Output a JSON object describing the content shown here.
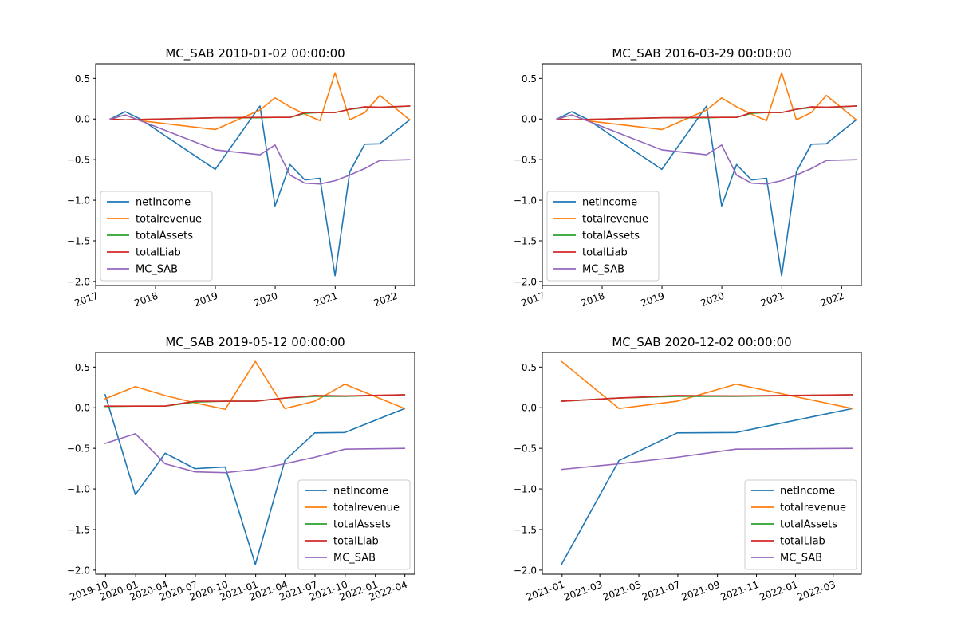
{
  "colors": {
    "netIncome": "#1f77b4",
    "totalrevenue": "#ff7f0e",
    "totalAssets": "#2ca02c",
    "totalLiab": "#d62728",
    "MC_SAB": "#9467bd"
  },
  "chart_data": [
    {
      "type": "line",
      "title": "MC_SAB 2010-01-02 00:00:00",
      "xlabel": "",
      "ylabel": "",
      "x_type": "date",
      "xlim": [
        "2017-01-01",
        "2022-05-01"
      ],
      "ylim": [
        -2.05,
        0.68
      ],
      "xticks": [
        "2017-01-01",
        "2018-01-01",
        "2019-01-01",
        "2020-01-01",
        "2021-01-01",
        "2022-01-01"
      ],
      "xtick_labels": [
        "2017",
        "2018",
        "2019",
        "2020",
        "2021",
        "2022"
      ],
      "yticks": [
        0.5,
        0.0,
        -0.5,
        -1.0,
        -1.5,
        -2.0
      ],
      "ytick_labels": [
        "0.5",
        "0.0",
        "−0.5",
        "−1.0",
        "−1.5",
        "−2.0"
      ],
      "legend_position": "lower-left",
      "grid": false,
      "series": [
        {
          "name": "netIncome",
          "x": [
            "2017-03-31",
            "2017-06-30",
            "2017-09-30",
            "2018-12-31",
            "2019-09-30",
            "2019-12-31",
            "2020-03-31",
            "2020-06-30",
            "2020-09-30",
            "2020-12-31",
            "2021-03-31",
            "2021-06-30",
            "2021-09-30",
            "2022-03-31"
          ],
          "values": [
            0.0,
            0.09,
            0.0,
            -0.62,
            0.16,
            -1.07,
            -0.56,
            -0.75,
            -0.73,
            -1.93,
            -0.65,
            -0.31,
            -0.305,
            -0.01
          ]
        },
        {
          "name": "totalrevenue",
          "x": [
            "2017-03-31",
            "2017-06-30",
            "2017-09-30",
            "2018-12-31",
            "2019-09-30",
            "2019-12-31",
            "2020-03-31",
            "2020-06-30",
            "2020-09-30",
            "2020-12-31",
            "2021-03-31",
            "2021-06-30",
            "2021-09-30",
            "2022-03-31"
          ],
          "values": [
            0.0,
            0.05,
            -0.02,
            -0.13,
            0.11,
            0.26,
            0.15,
            0.06,
            -0.02,
            0.57,
            -0.01,
            0.08,
            0.29,
            -0.01
          ]
        },
        {
          "name": "totalAssets",
          "x": [
            "2017-03-31",
            "2017-06-30",
            "2017-09-30",
            "2018-12-31",
            "2019-09-30",
            "2019-12-31",
            "2020-03-31",
            "2020-06-30",
            "2020-09-30",
            "2020-12-31",
            "2021-03-31",
            "2021-06-30",
            "2021-09-30",
            "2022-03-31"
          ],
          "values": [
            0.0,
            -0.01,
            -0.005,
            0.015,
            0.015,
            0.02,
            0.02,
            0.07,
            0.08,
            0.08,
            0.12,
            0.14,
            0.14,
            0.16
          ]
        },
        {
          "name": "totalLiab",
          "x": [
            "2017-03-31",
            "2017-06-30",
            "2017-09-30",
            "2018-12-31",
            "2019-09-30",
            "2019-12-31",
            "2020-03-31",
            "2020-06-30",
            "2020-09-30",
            "2020-12-31",
            "2021-03-31",
            "2021-06-30",
            "2021-09-30",
            "2022-03-31"
          ],
          "values": [
            0.0,
            -0.01,
            -0.005,
            0.015,
            0.02,
            0.02,
            0.02,
            0.08,
            0.08,
            0.08,
            0.12,
            0.15,
            0.145,
            0.16
          ]
        },
        {
          "name": "MC_SAB",
          "x": [
            "2017-03-31",
            "2017-06-30",
            "2017-09-30",
            "2018-12-31",
            "2019-09-30",
            "2019-12-31",
            "2020-03-31",
            "2020-06-30",
            "2020-09-30",
            "2020-12-31",
            "2021-03-31",
            "2021-06-30",
            "2021-09-30",
            "2022-03-31"
          ],
          "values": [
            0.0,
            0.05,
            -0.02,
            -0.38,
            -0.44,
            -0.32,
            -0.69,
            -0.79,
            -0.8,
            -0.76,
            -0.69,
            -0.61,
            -0.51,
            -0.5
          ]
        }
      ]
    },
    {
      "type": "line",
      "title": "MC_SAB 2016-03-29 00:00:00",
      "xlabel": "",
      "ylabel": "",
      "x_type": "date",
      "xlim": [
        "2017-01-01",
        "2022-05-01"
      ],
      "ylim": [
        -2.05,
        0.68
      ],
      "xticks": [
        "2017-01-01",
        "2018-01-01",
        "2019-01-01",
        "2020-01-01",
        "2021-01-01",
        "2022-01-01"
      ],
      "xtick_labels": [
        "2017",
        "2018",
        "2019",
        "2020",
        "2021",
        "2022"
      ],
      "yticks": [
        0.5,
        0.0,
        -0.5,
        -1.0,
        -1.5,
        -2.0
      ],
      "ytick_labels": [
        "0.5",
        "0.0",
        "−0.5",
        "−1.0",
        "−1.5",
        "−2.0"
      ],
      "legend_position": "lower-left",
      "grid": false,
      "series": [
        {
          "name": "netIncome",
          "x": [
            "2017-03-31",
            "2017-06-30",
            "2017-09-30",
            "2018-12-31",
            "2019-09-30",
            "2019-12-31",
            "2020-03-31",
            "2020-06-30",
            "2020-09-30",
            "2020-12-31",
            "2021-03-31",
            "2021-06-30",
            "2021-09-30",
            "2022-03-31"
          ],
          "values": [
            0.0,
            0.09,
            0.0,
            -0.62,
            0.16,
            -1.07,
            -0.56,
            -0.75,
            -0.73,
            -1.93,
            -0.65,
            -0.31,
            -0.305,
            -0.01
          ]
        },
        {
          "name": "totalrevenue",
          "x": [
            "2017-03-31",
            "2017-06-30",
            "2017-09-30",
            "2018-12-31",
            "2019-09-30",
            "2019-12-31",
            "2020-03-31",
            "2020-06-30",
            "2020-09-30",
            "2020-12-31",
            "2021-03-31",
            "2021-06-30",
            "2021-09-30",
            "2022-03-31"
          ],
          "values": [
            0.0,
            0.05,
            -0.02,
            -0.13,
            0.11,
            0.26,
            0.15,
            0.06,
            -0.02,
            0.57,
            -0.01,
            0.08,
            0.29,
            -0.01
          ]
        },
        {
          "name": "totalAssets",
          "x": [
            "2017-03-31",
            "2017-06-30",
            "2017-09-30",
            "2018-12-31",
            "2019-09-30",
            "2019-12-31",
            "2020-03-31",
            "2020-06-30",
            "2020-09-30",
            "2020-12-31",
            "2021-03-31",
            "2021-06-30",
            "2021-09-30",
            "2022-03-31"
          ],
          "values": [
            0.0,
            -0.01,
            -0.005,
            0.015,
            0.015,
            0.02,
            0.02,
            0.07,
            0.08,
            0.08,
            0.12,
            0.14,
            0.14,
            0.16
          ]
        },
        {
          "name": "totalLiab",
          "x": [
            "2017-03-31",
            "2017-06-30",
            "2017-09-30",
            "2018-12-31",
            "2019-09-30",
            "2019-12-31",
            "2020-03-31",
            "2020-06-30",
            "2020-09-30",
            "2020-12-31",
            "2021-03-31",
            "2021-06-30",
            "2021-09-30",
            "2022-03-31"
          ],
          "values": [
            0.0,
            -0.01,
            -0.005,
            0.015,
            0.02,
            0.02,
            0.02,
            0.08,
            0.08,
            0.08,
            0.12,
            0.15,
            0.145,
            0.16
          ]
        },
        {
          "name": "MC_SAB",
          "x": [
            "2017-03-31",
            "2017-06-30",
            "2017-09-30",
            "2018-12-31",
            "2019-09-30",
            "2019-12-31",
            "2020-03-31",
            "2020-06-30",
            "2020-09-30",
            "2020-12-31",
            "2021-03-31",
            "2021-06-30",
            "2021-09-30",
            "2022-03-31"
          ],
          "values": [
            0.0,
            0.05,
            -0.02,
            -0.38,
            -0.44,
            -0.32,
            -0.69,
            -0.79,
            -0.8,
            -0.76,
            -0.69,
            -0.61,
            -0.51,
            -0.5
          ]
        }
      ]
    },
    {
      "type": "line",
      "title": "MC_SAB 2019-05-12 00:00:00",
      "xlabel": "",
      "ylabel": "",
      "x_type": "date",
      "xlim": [
        "2019-09-01",
        "2022-05-01"
      ],
      "ylim": [
        -2.05,
        0.68
      ],
      "xticks": [
        "2019-10-01",
        "2020-01-01",
        "2020-04-01",
        "2020-07-01",
        "2020-10-01",
        "2021-01-01",
        "2021-04-01",
        "2021-07-01",
        "2021-10-01",
        "2022-01-01",
        "2022-04-01"
      ],
      "xtick_labels": [
        "2019-10",
        "2020-01",
        "2020-04",
        "2020-07",
        "2020-10",
        "2021-01",
        "2021-04",
        "2021-07",
        "2021-10",
        "2022-01",
        "2022-04"
      ],
      "yticks": [
        0.5,
        0.0,
        -0.5,
        -1.0,
        -1.5,
        -2.0
      ],
      "ytick_labels": [
        "0.5",
        "0.0",
        "−0.5",
        "−1.0",
        "−1.5",
        "−2.0"
      ],
      "legend_position": "lower-right",
      "grid": false,
      "series": [
        {
          "name": "netIncome",
          "x": [
            "2019-09-30",
            "2019-12-31",
            "2020-03-31",
            "2020-06-30",
            "2020-09-30",
            "2020-12-31",
            "2021-03-31",
            "2021-06-30",
            "2021-09-30",
            "2022-03-31"
          ],
          "values": [
            0.16,
            -1.07,
            -0.56,
            -0.75,
            -0.73,
            -1.93,
            -0.65,
            -0.31,
            -0.305,
            -0.01
          ]
        },
        {
          "name": "totalrevenue",
          "x": [
            "2019-09-30",
            "2019-12-31",
            "2020-03-31",
            "2020-06-30",
            "2020-09-30",
            "2020-12-31",
            "2021-03-31",
            "2021-06-30",
            "2021-09-30",
            "2022-03-31"
          ],
          "values": [
            0.11,
            0.26,
            0.15,
            0.06,
            -0.02,
            0.57,
            -0.01,
            0.08,
            0.29,
            -0.01
          ]
        },
        {
          "name": "totalAssets",
          "x": [
            "2019-09-30",
            "2019-12-31",
            "2020-03-31",
            "2020-06-30",
            "2020-09-30",
            "2020-12-31",
            "2021-03-31",
            "2021-06-30",
            "2021-09-30",
            "2022-03-31"
          ],
          "values": [
            0.015,
            0.02,
            0.02,
            0.07,
            0.08,
            0.08,
            0.12,
            0.14,
            0.14,
            0.16
          ]
        },
        {
          "name": "totalLiab",
          "x": [
            "2019-09-30",
            "2019-12-31",
            "2020-03-31",
            "2020-06-30",
            "2020-09-30",
            "2020-12-31",
            "2021-03-31",
            "2021-06-30",
            "2021-09-30",
            "2022-03-31"
          ],
          "values": [
            0.02,
            0.02,
            0.02,
            0.08,
            0.08,
            0.08,
            0.12,
            0.15,
            0.145,
            0.16
          ]
        },
        {
          "name": "MC_SAB",
          "x": [
            "2019-09-30",
            "2019-12-31",
            "2020-03-31",
            "2020-06-30",
            "2020-09-30",
            "2020-12-31",
            "2021-03-31",
            "2021-06-30",
            "2021-09-30",
            "2022-03-31"
          ],
          "values": [
            -0.44,
            -0.32,
            -0.69,
            -0.79,
            -0.8,
            -0.76,
            -0.69,
            -0.61,
            -0.51,
            -0.5
          ]
        }
      ]
    },
    {
      "type": "line",
      "title": "MC_SAB 2020-12-02 00:00:00",
      "xlabel": "",
      "ylabel": "",
      "x_type": "date",
      "xlim": [
        "2020-12-01",
        "2022-04-14"
      ],
      "ylim": [
        -2.05,
        0.68
      ],
      "xticks": [
        "2021-01-01",
        "2021-03-01",
        "2021-05-01",
        "2021-07-01",
        "2021-09-01",
        "2021-11-01",
        "2022-01-01",
        "2022-03-01"
      ],
      "xtick_labels": [
        "2021-01",
        "2021-03",
        "2021-05",
        "2021-07",
        "2021-09",
        "2021-11",
        "2022-01",
        "2022-03"
      ],
      "yticks": [
        0.5,
        0.0,
        -0.5,
        -1.0,
        -1.5,
        -2.0
      ],
      "ytick_labels": [
        "0.5",
        "0.0",
        "−0.5",
        "−1.0",
        "−1.5",
        "−2.0"
      ],
      "legend_position": "lower-right",
      "grid": false,
      "series": [
        {
          "name": "netIncome",
          "x": [
            "2020-12-31",
            "2021-03-31",
            "2021-06-30",
            "2021-09-30",
            "2022-03-31"
          ],
          "values": [
            -1.93,
            -0.65,
            -0.31,
            -0.305,
            -0.01
          ]
        },
        {
          "name": "totalrevenue",
          "x": [
            "2020-12-31",
            "2021-03-31",
            "2021-06-30",
            "2021-09-30",
            "2022-03-31"
          ],
          "values": [
            0.57,
            -0.01,
            0.08,
            0.29,
            -0.01
          ]
        },
        {
          "name": "totalAssets",
          "x": [
            "2020-12-31",
            "2021-03-31",
            "2021-06-30",
            "2021-09-30",
            "2022-03-31"
          ],
          "values": [
            0.08,
            0.12,
            0.14,
            0.14,
            0.16
          ]
        },
        {
          "name": "totalLiab",
          "x": [
            "2020-12-31",
            "2021-03-31",
            "2021-06-30",
            "2021-09-30",
            "2022-03-31"
          ],
          "values": [
            0.08,
            0.12,
            0.15,
            0.145,
            0.16
          ]
        },
        {
          "name": "MC_SAB",
          "x": [
            "2020-12-31",
            "2021-03-31",
            "2021-06-30",
            "2021-09-30",
            "2022-03-31"
          ],
          "values": [
            -0.76,
            -0.69,
            -0.61,
            -0.51,
            -0.5
          ]
        }
      ]
    }
  ]
}
